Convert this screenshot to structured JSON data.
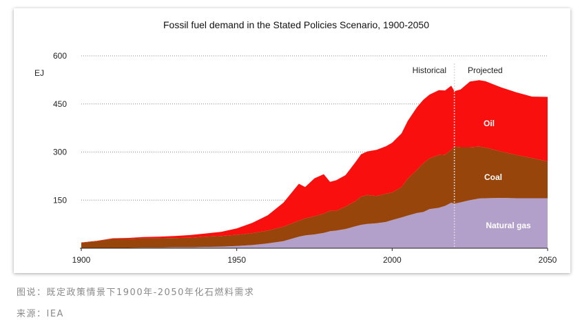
{
  "chart_data": {
    "type": "area",
    "stacked": true,
    "title": "Fossil fuel demand in the Stated Policies Scenario, 1900-2050",
    "ylabel": "EJ",
    "xlabel": "",
    "xlim": [
      1900,
      2050
    ],
    "ylim": [
      0,
      600
    ],
    "x_ticks": [
      1900,
      1950,
      2000,
      2050
    ],
    "y_ticks": [
      150,
      300,
      450,
      600
    ],
    "divider_year": 2020,
    "period_labels": {
      "historical": "Historical",
      "projected": "Projected"
    },
    "x": [
      1900,
      1905,
      1910,
      1915,
      1920,
      1925,
      1930,
      1935,
      1940,
      1945,
      1950,
      1955,
      1960,
      1965,
      1970,
      1972,
      1975,
      1978,
      1980,
      1982,
      1985,
      1988,
      1990,
      1992,
      1995,
      1998,
      2000,
      2003,
      2005,
      2008,
      2010,
      2012,
      2015,
      2017,
      2019,
      2020,
      2022,
      2025,
      2028,
      2030,
      2035,
      2040,
      2045,
      2050
    ],
    "series": [
      {
        "name": "Natural gas",
        "color": "#b29fca",
        "values": [
          0,
          0,
          1,
          1,
          2,
          2,
          3,
          3,
          4,
          5,
          7,
          10,
          15,
          22,
          36,
          40,
          43,
          48,
          53,
          55,
          60,
          68,
          73,
          76,
          78,
          82,
          88,
          96,
          102,
          110,
          113,
          122,
          126,
          132,
          142,
          139,
          143,
          150,
          155,
          156,
          157,
          156,
          156,
          156
        ]
      },
      {
        "name": "Coal",
        "color": "#98450b",
        "values": [
          17,
          22,
          28,
          28,
          29,
          29,
          29,
          30,
          32,
          33,
          35,
          37,
          40,
          45,
          50,
          53,
          57,
          60,
          64,
          62,
          70,
          78,
          88,
          90,
          85,
          88,
          86,
          95,
          115,
          135,
          152,
          158,
          165,
          160,
          165,
          178,
          172,
          165,
          162,
          158,
          145,
          135,
          125,
          115
        ]
      },
      {
        "name": "Oil",
        "color": "#fa0f0f",
        "values": [
          1,
          1,
          2,
          3,
          4,
          5,
          6,
          8,
          10,
          13,
          20,
          32,
          48,
          75,
          115,
          98,
          118,
          123,
          90,
          95,
          98,
          120,
          132,
          136,
          144,
          148,
          155,
          167,
          180,
          195,
          198,
          199,
          202,
          200,
          200,
          173,
          180,
          205,
          207,
          207,
          200,
          195,
          192,
          201
        ]
      }
    ]
  },
  "caption": "图说：既定政策情景下1900年-2050年化石燃料需求",
  "source": "来源：IEA"
}
